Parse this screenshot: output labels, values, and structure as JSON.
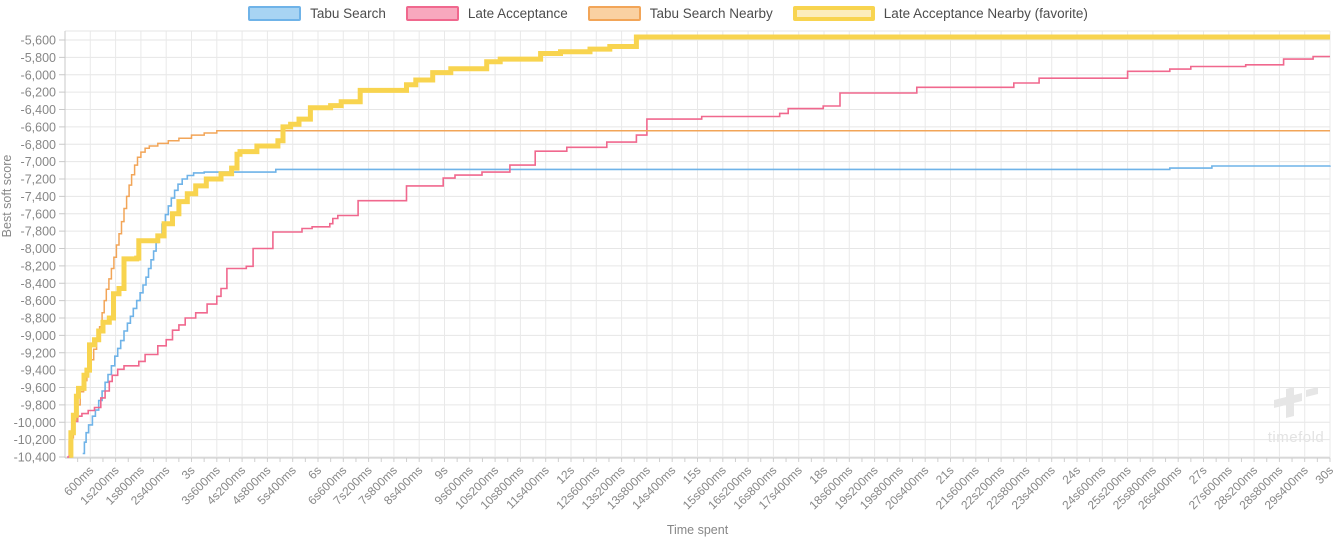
{
  "watermark": {
    "text": "timefold"
  },
  "chart_data": {
    "type": "line",
    "title": "",
    "xlabel": "Time spent",
    "ylabel": "Best soft score",
    "xlim": [
      0,
      30
    ],
    "ylim": [
      -10400,
      -5600
    ],
    "grid": true,
    "legend_position": "top-center",
    "x_unit": "seconds",
    "x_major_tick_interval_s": 0.6,
    "x_minor_tick_interval_s": 0.3,
    "x_tick_labels": [
      "600ms",
      "1s200ms",
      "1s800ms",
      "2s400ms",
      "3s",
      "3s600ms",
      "4s200ms",
      "4s800ms",
      "5s400ms",
      "6s",
      "6s600ms",
      "7s200ms",
      "7s800ms",
      "8s400ms",
      "9s",
      "9s600ms",
      "10s200ms",
      "10s800ms",
      "11s400ms",
      "12s",
      "12s600ms",
      "13s200ms",
      "13s800ms",
      "14s400ms",
      "15s",
      "15s600ms",
      "16s200ms",
      "16s800ms",
      "17s400ms",
      "18s",
      "18s600ms",
      "19s200ms",
      "19s800ms",
      "20s400ms",
      "21s",
      "21s600ms",
      "22s200ms",
      "22s800ms",
      "23s400ms",
      "24s",
      "24s600ms",
      "25s200ms",
      "25s800ms",
      "26s400ms",
      "27s",
      "27s600ms",
      "28s200ms",
      "28s800ms",
      "29s400ms",
      "30s"
    ],
    "y_tick_labels": [
      "-5,600",
      "-5,800",
      "-6,000",
      "-6,200",
      "-6,400",
      "-6,600",
      "-6,800",
      "-7,000",
      "-7,200",
      "-7,400",
      "-7,600",
      "-7,800",
      "-8,000",
      "-8,200",
      "-8,400",
      "-8,600",
      "-8,800",
      "-9,000",
      "-9,200",
      "-9,400",
      "-9,600",
      "-9,800",
      "-10,000",
      "-10,200",
      "-10,400"
    ],
    "series": [
      {
        "name": "Tabu Search",
        "color": "#6fb3e8",
        "fill": "#a8d4f3",
        "width": 1.6,
        "step": true,
        "points": [
          [
            0.42,
            -10360
          ],
          [
            0.46,
            -10230
          ],
          [
            0.5,
            -10120
          ],
          [
            0.56,
            -10030
          ],
          [
            0.65,
            -9930
          ],
          [
            0.72,
            -9860
          ],
          [
            0.8,
            -9750
          ],
          [
            0.88,
            -9640
          ],
          [
            0.95,
            -9540
          ],
          [
            1.02,
            -9450
          ],
          [
            1.1,
            -9350
          ],
          [
            1.18,
            -9240
          ],
          [
            1.25,
            -9150
          ],
          [
            1.32,
            -9060
          ],
          [
            1.4,
            -8950
          ],
          [
            1.48,
            -8860
          ],
          [
            1.55,
            -8780
          ],
          [
            1.62,
            -8690
          ],
          [
            1.7,
            -8600
          ],
          [
            1.78,
            -8510
          ],
          [
            1.85,
            -8420
          ],
          [
            1.92,
            -8330
          ],
          [
            1.98,
            -8230
          ],
          [
            2.04,
            -8130
          ],
          [
            2.1,
            -8030
          ],
          [
            2.16,
            -7930
          ],
          [
            2.22,
            -7840
          ],
          [
            2.3,
            -7720
          ],
          [
            2.38,
            -7610
          ],
          [
            2.45,
            -7510
          ],
          [
            2.52,
            -7420
          ],
          [
            2.6,
            -7330
          ],
          [
            2.68,
            -7260
          ],
          [
            2.78,
            -7200
          ],
          [
            2.9,
            -7160
          ],
          [
            3.05,
            -7130
          ],
          [
            3.3,
            -7120
          ],
          [
            5.0,
            -7090
          ],
          [
            26.2,
            -7075
          ],
          [
            27.2,
            -7050
          ],
          [
            30,
            -7045
          ]
        ]
      },
      {
        "name": "Late Acceptance",
        "color": "#f0688e",
        "fill": "#f8a8be",
        "width": 1.6,
        "step": true,
        "points": [
          [
            0.05,
            -10400
          ],
          [
            0.1,
            -10220
          ],
          [
            0.16,
            -10080
          ],
          [
            0.22,
            -9990
          ],
          [
            0.3,
            -9930
          ],
          [
            0.4,
            -9900
          ],
          [
            0.55,
            -9865
          ],
          [
            0.7,
            -9830
          ],
          [
            0.85,
            -9720
          ],
          [
            0.95,
            -9640
          ],
          [
            1.05,
            -9530
          ],
          [
            1.12,
            -9460
          ],
          [
            1.25,
            -9390
          ],
          [
            1.4,
            -9350
          ],
          [
            1.75,
            -9300
          ],
          [
            1.9,
            -9220
          ],
          [
            2.2,
            -9120
          ],
          [
            2.4,
            -9050
          ],
          [
            2.55,
            -8940
          ],
          [
            2.7,
            -8880
          ],
          [
            2.85,
            -8800
          ],
          [
            3.1,
            -8740
          ],
          [
            3.37,
            -8640
          ],
          [
            3.6,
            -8550
          ],
          [
            3.7,
            -8460
          ],
          [
            3.84,
            -8230
          ],
          [
            4.3,
            -8205
          ],
          [
            4.46,
            -8000
          ],
          [
            4.93,
            -7810
          ],
          [
            5.62,
            -7770
          ],
          [
            5.86,
            -7750
          ],
          [
            6.28,
            -7715
          ],
          [
            6.35,
            -7655
          ],
          [
            6.47,
            -7620
          ],
          [
            6.95,
            -7450
          ],
          [
            8.1,
            -7280
          ],
          [
            8.97,
            -7190
          ],
          [
            9.25,
            -7155
          ],
          [
            9.89,
            -7120
          ],
          [
            10.55,
            -7040
          ],
          [
            11.15,
            -6880
          ],
          [
            11.9,
            -6835
          ],
          [
            12.85,
            -6775
          ],
          [
            13.55,
            -6695
          ],
          [
            13.8,
            -6510
          ],
          [
            15.1,
            -6480
          ],
          [
            16.95,
            -6445
          ],
          [
            17.15,
            -6390
          ],
          [
            17.98,
            -6360
          ],
          [
            18.38,
            -6210
          ],
          [
            20.2,
            -6145
          ],
          [
            22.5,
            -6095
          ],
          [
            23.1,
            -6040
          ],
          [
            25.2,
            -5960
          ],
          [
            26.2,
            -5935
          ],
          [
            26.7,
            -5905
          ],
          [
            28.0,
            -5885
          ],
          [
            28.9,
            -5820
          ],
          [
            29.6,
            -5790
          ],
          [
            30,
            -5790
          ]
        ]
      },
      {
        "name": "Tabu Search Nearby",
        "color": "#f2a558",
        "fill": "#fad1a2",
        "width": 1.5,
        "step": true,
        "points": [
          [
            0.1,
            -10400
          ],
          [
            0.14,
            -10180
          ],
          [
            0.2,
            -9980
          ],
          [
            0.28,
            -9800
          ],
          [
            0.36,
            -9650
          ],
          [
            0.44,
            -9520
          ],
          [
            0.52,
            -9400
          ],
          [
            0.6,
            -9280
          ],
          [
            0.68,
            -9160
          ],
          [
            0.75,
            -9040
          ],
          [
            0.82,
            -8900
          ],
          [
            0.88,
            -8740
          ],
          [
            0.93,
            -8600
          ],
          [
            0.98,
            -8470
          ],
          [
            1.04,
            -8350
          ],
          [
            1.1,
            -8230
          ],
          [
            1.16,
            -8100
          ],
          [
            1.22,
            -7960
          ],
          [
            1.28,
            -7830
          ],
          [
            1.34,
            -7690
          ],
          [
            1.4,
            -7540
          ],
          [
            1.46,
            -7400
          ],
          [
            1.52,
            -7270
          ],
          [
            1.58,
            -7150
          ],
          [
            1.65,
            -7040
          ],
          [
            1.72,
            -6950
          ],
          [
            1.8,
            -6890
          ],
          [
            1.9,
            -6845
          ],
          [
            2.0,
            -6820
          ],
          [
            2.2,
            -6790
          ],
          [
            2.45,
            -6760
          ],
          [
            2.7,
            -6730
          ],
          [
            3.0,
            -6695
          ],
          [
            3.3,
            -6670
          ],
          [
            3.6,
            -6645
          ],
          [
            30,
            -6645
          ]
        ]
      },
      {
        "name": "Late Acceptance Nearby (favorite)",
        "color": "#f8d44f",
        "fill": "#fcedbc",
        "width": 5,
        "step": true,
        "points": [
          [
            0.1,
            -10380
          ],
          [
            0.14,
            -10120
          ],
          [
            0.2,
            -9920
          ],
          [
            0.27,
            -9700
          ],
          [
            0.32,
            -9610
          ],
          [
            0.45,
            -9460
          ],
          [
            0.52,
            -9400
          ],
          [
            0.58,
            -9110
          ],
          [
            0.7,
            -9050
          ],
          [
            0.8,
            -8950
          ],
          [
            0.9,
            -8850
          ],
          [
            1.05,
            -8800
          ],
          [
            1.15,
            -8520
          ],
          [
            1.28,
            -8460
          ],
          [
            1.4,
            -8120
          ],
          [
            1.7,
            -8110
          ],
          [
            1.75,
            -7910
          ],
          [
            2.2,
            -7855
          ],
          [
            2.35,
            -7715
          ],
          [
            2.55,
            -7600
          ],
          [
            2.7,
            -7460
          ],
          [
            2.9,
            -7370
          ],
          [
            3.1,
            -7280
          ],
          [
            3.35,
            -7200
          ],
          [
            3.7,
            -7140
          ],
          [
            3.95,
            -7075
          ],
          [
            4.08,
            -6915
          ],
          [
            4.15,
            -6885
          ],
          [
            4.55,
            -6820
          ],
          [
            5.05,
            -6760
          ],
          [
            5.17,
            -6600
          ],
          [
            5.35,
            -6570
          ],
          [
            5.55,
            -6510
          ],
          [
            5.82,
            -6380
          ],
          [
            6.3,
            -6355
          ],
          [
            6.55,
            -6310
          ],
          [
            7.0,
            -6180
          ],
          [
            8.1,
            -6115
          ],
          [
            8.32,
            -6060
          ],
          [
            8.72,
            -5975
          ],
          [
            9.15,
            -5930
          ],
          [
            10.0,
            -5850
          ],
          [
            10.32,
            -5820
          ],
          [
            11.28,
            -5755
          ],
          [
            11.75,
            -5735
          ],
          [
            12.45,
            -5705
          ],
          [
            12.92,
            -5675
          ],
          [
            13.55,
            -5565
          ],
          [
            30,
            -5565
          ]
        ]
      }
    ]
  }
}
